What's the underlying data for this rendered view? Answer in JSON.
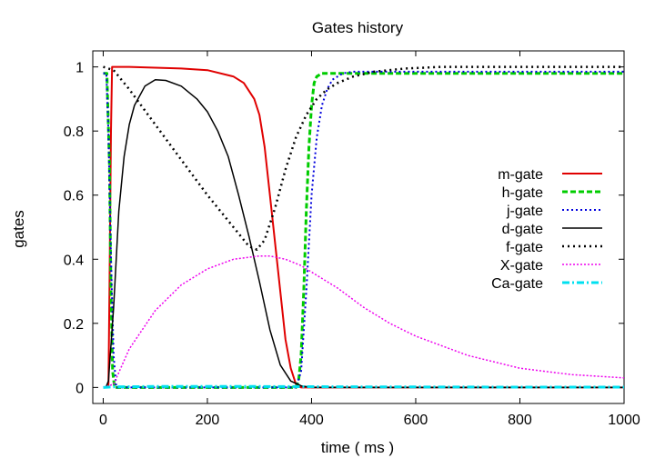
{
  "chart_data": {
    "type": "line",
    "title": "Gates history",
    "xlabel": "time ( ms )",
    "ylabel": "gates",
    "xlim": [
      -20,
      1000
    ],
    "ylim": [
      -0.05,
      1.05
    ],
    "xticks": [
      0,
      200,
      400,
      600,
      800,
      1000
    ],
    "xtick_labels": [
      "0",
      "200",
      "400",
      "600",
      "800",
      "1000"
    ],
    "yticks": [
      0,
      0.2,
      0.4,
      0.6,
      0.8,
      1
    ],
    "ytick_labels": [
      "0",
      "0.2",
      "0.4",
      "0.6",
      "0.8",
      "1"
    ],
    "grid": false,
    "legend_position": "right",
    "series": [
      {
        "name": "m-gate",
        "color": "#e00000",
        "dash": "solid",
        "width": 2,
        "x": [
          0,
          10,
          12,
          15,
          17,
          50,
          150,
          200,
          250,
          270,
          290,
          300,
          310,
          320,
          330,
          340,
          350,
          360,
          370,
          380,
          1000
        ],
        "y": [
          0.0,
          0.0,
          0.3,
          0.8,
          1.0,
          1.0,
          0.995,
          0.99,
          0.97,
          0.95,
          0.9,
          0.85,
          0.75,
          0.6,
          0.45,
          0.3,
          0.15,
          0.06,
          0.01,
          0.0,
          0.0
        ]
      },
      {
        "name": "h-gate",
        "color": "#00cc00",
        "dash": "6,3",
        "width": 3,
        "x": [
          0,
          7,
          12,
          15,
          18,
          22,
          370,
          375,
          380,
          385,
          390,
          395,
          400,
          405,
          410,
          420,
          440,
          500,
          1000
        ],
        "y": [
          0.98,
          0.98,
          0.7,
          0.3,
          0.05,
          0.0,
          0.0,
          0.02,
          0.1,
          0.3,
          0.55,
          0.75,
          0.88,
          0.95,
          0.97,
          0.98,
          0.98,
          0.98,
          0.98
        ]
      },
      {
        "name": "j-gate",
        "color": "#0000dd",
        "dash": "2,3",
        "width": 2,
        "x": [
          0,
          6,
          10,
          15,
          20,
          25,
          370,
          380,
          390,
          400,
          410,
          420,
          430,
          440,
          460,
          480,
          520,
          600,
          1000
        ],
        "y": [
          0.98,
          0.98,
          0.8,
          0.4,
          0.1,
          0.0,
          0.0,
          0.05,
          0.3,
          0.6,
          0.78,
          0.88,
          0.93,
          0.96,
          0.98,
          0.985,
          0.985,
          0.985,
          0.985
        ]
      },
      {
        "name": "d-gate",
        "color": "#000000",
        "dash": "solid",
        "width": 1.5,
        "x": [
          0,
          5,
          10,
          20,
          30,
          40,
          50,
          60,
          80,
          100,
          120,
          150,
          180,
          200,
          220,
          240,
          260,
          280,
          300,
          320,
          340,
          360,
          380,
          400,
          420,
          500,
          1000
        ],
        "y": [
          0.0,
          0.0,
          0.02,
          0.25,
          0.55,
          0.72,
          0.82,
          0.88,
          0.94,
          0.96,
          0.958,
          0.94,
          0.9,
          0.86,
          0.8,
          0.72,
          0.6,
          0.47,
          0.33,
          0.18,
          0.07,
          0.02,
          0.005,
          0.0,
          0.0,
          0.0,
          0.0
        ]
      },
      {
        "name": "f-gate",
        "color": "#000000",
        "dash": "2,4",
        "width": 2.5,
        "x": [
          0,
          20,
          50,
          100,
          150,
          200,
          250,
          280,
          295,
          310,
          330,
          350,
          370,
          390,
          410,
          430,
          450,
          480,
          520,
          580,
          650,
          750,
          1000
        ],
        "y": [
          1.0,
          0.99,
          0.93,
          0.82,
          0.71,
          0.6,
          0.5,
          0.44,
          0.43,
          0.46,
          0.56,
          0.68,
          0.78,
          0.85,
          0.9,
          0.93,
          0.95,
          0.97,
          0.985,
          0.995,
          1.0,
          1.0,
          1.0
        ]
      },
      {
        "name": "X-gate",
        "color": "#ee00ee",
        "dash": "2,2",
        "width": 1.5,
        "x": [
          0,
          20,
          50,
          100,
          150,
          200,
          250,
          300,
          320,
          350,
          380,
          400,
          450,
          500,
          550,
          600,
          700,
          800,
          900,
          1000
        ],
        "y": [
          0.0,
          0.01,
          0.12,
          0.24,
          0.32,
          0.37,
          0.4,
          0.41,
          0.41,
          0.4,
          0.38,
          0.36,
          0.31,
          0.25,
          0.2,
          0.16,
          0.1,
          0.06,
          0.04,
          0.03
        ]
      },
      {
        "name": "Ca-gate",
        "color": "#00e0f0",
        "dash": "8,3,2,3",
        "width": 3,
        "x": [
          0,
          20,
          100,
          300,
          500,
          800,
          1000
        ],
        "y": [
          0.0,
          0.002,
          0.003,
          0.003,
          0.002,
          0.001,
          0.001
        ]
      }
    ]
  }
}
